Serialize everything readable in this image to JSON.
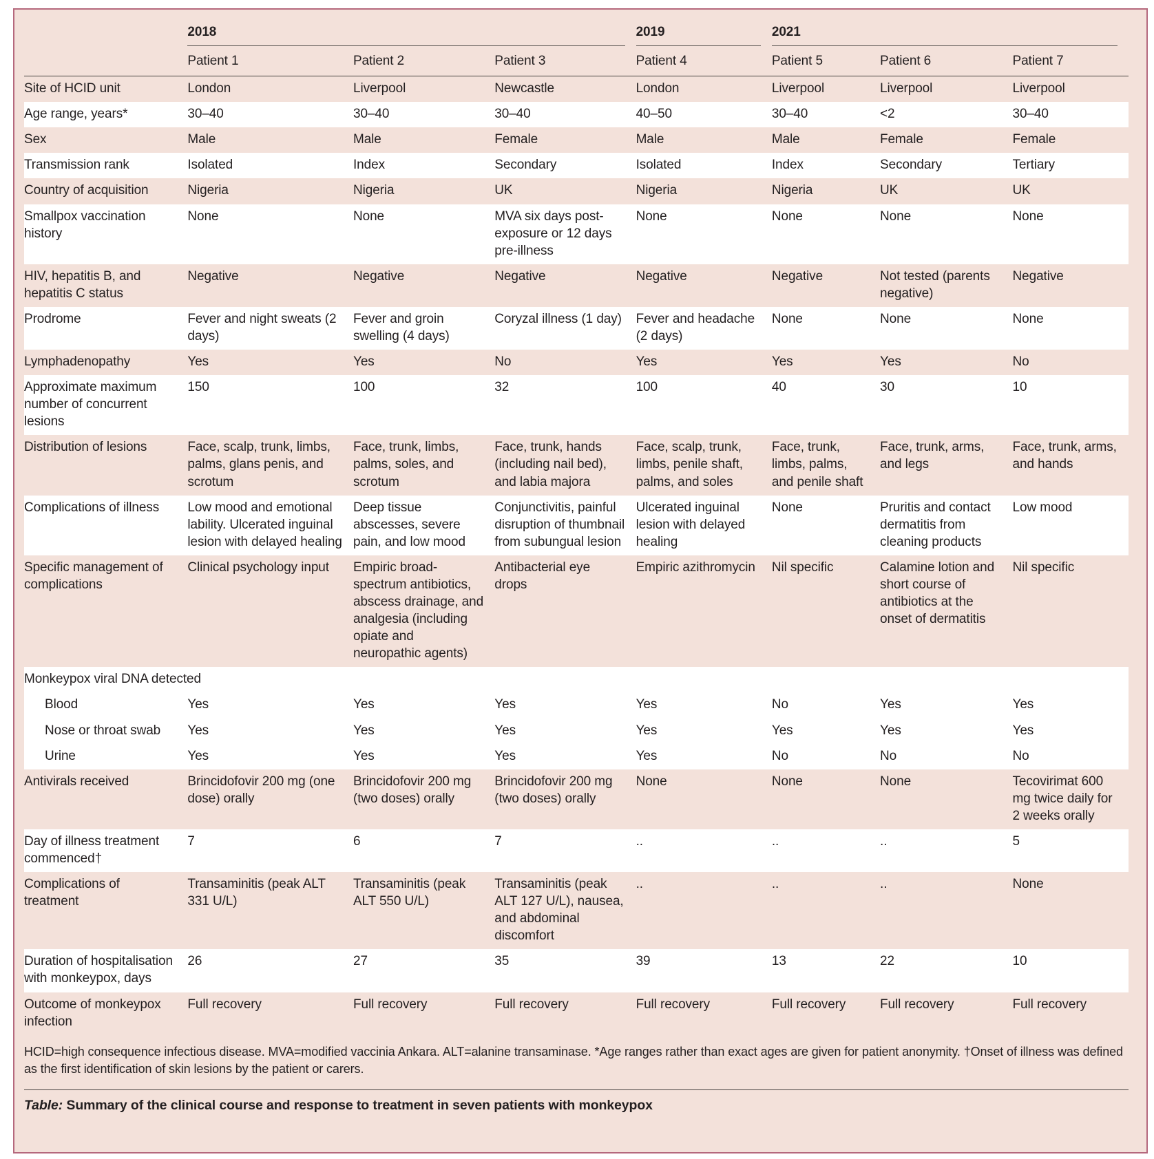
{
  "colors": {
    "figure_background": "#f3e1da",
    "stripe_white": "#ffffff",
    "figure_border": "#b5687d",
    "rule_dark": "#443f3d",
    "text": "#231f20"
  },
  "table": {
    "year_groups": [
      {
        "label": "2018"
      },
      {
        "label": "2019"
      },
      {
        "label": "2021"
      }
    ],
    "patients": [
      "Patient 1",
      "Patient 2",
      "Patient 3",
      "Patient 4",
      "Patient 5",
      "Patient 6",
      "Patient 7"
    ],
    "rows": [
      {
        "label": "Site of HCID unit",
        "shade": "pink",
        "values": [
          "London",
          "Liverpool",
          "Newcastle",
          "London",
          "Liverpool",
          "Liverpool",
          "Liverpool"
        ]
      },
      {
        "label": "Age range, years*",
        "shade": "white",
        "values": [
          "30–40",
          "30–40",
          "30–40",
          "40–50",
          "30–40",
          "<2",
          "30–40"
        ]
      },
      {
        "label": "Sex",
        "shade": "pink",
        "values": [
          "Male",
          "Male",
          "Female",
          "Male",
          "Male",
          "Female",
          "Female"
        ]
      },
      {
        "label": "Transmission rank",
        "shade": "white",
        "values": [
          "Isolated",
          "Index",
          "Secondary",
          "Isolated",
          "Index",
          "Secondary",
          "Tertiary"
        ]
      },
      {
        "label": "Country of acquisition",
        "shade": "pink",
        "values": [
          "Nigeria",
          "Nigeria",
          "UK",
          "Nigeria",
          "Nigeria",
          "UK",
          "UK"
        ]
      },
      {
        "label": "Smallpox vaccination history",
        "shade": "white",
        "values": [
          "None",
          "None",
          "MVA six days post-exposure or 12 days pre-illness",
          "None",
          "None",
          "None",
          "None"
        ]
      },
      {
        "label": "HIV, hepatitis B, and hepatitis C status",
        "shade": "pink",
        "values": [
          "Negative",
          "Negative",
          "Negative",
          "Negative",
          "Negative",
          "Not tested (parents negative)",
          "Negative"
        ]
      },
      {
        "label": "Prodrome",
        "shade": "white",
        "values": [
          "Fever and night sweats (2 days)",
          "Fever and groin swelling (4 days)",
          "Coryzal illness (1 day)",
          "Fever and headache (2 days)",
          "None",
          "None",
          "None"
        ]
      },
      {
        "label": "Lymphadenopathy",
        "shade": "pink",
        "values": [
          "Yes",
          "Yes",
          "No",
          "Yes",
          "Yes",
          "Yes",
          "No"
        ]
      },
      {
        "label": "Approximate maximum number of concurrent lesions",
        "shade": "white",
        "values": [
          "150",
          "100",
          "32",
          "100",
          "40",
          "30",
          "10"
        ]
      },
      {
        "label": "Distribution of lesions",
        "shade": "pink",
        "values": [
          "Face, scalp, trunk, limbs, palms, glans penis, and scrotum",
          "Face, trunk, limbs, palms, soles, and scrotum",
          "Face, trunk, hands (including nail bed), and labia majora",
          "Face, scalp, trunk, limbs, penile shaft, palms, and soles",
          "Face, trunk, limbs, palms, and penile shaft",
          "Face, trunk, arms, and legs",
          "Face, trunk, arms, and hands"
        ]
      },
      {
        "label": "Complications of illness",
        "shade": "white",
        "values": [
          "Low mood and emotional lability. Ulcerated inguinal lesion with delayed healing",
          "Deep tissue abscesses, severe pain, and low mood",
          "Conjunctivitis, painful disruption of thumbnail from subungual lesion",
          "Ulcerated inguinal lesion with delayed healing",
          "None",
          "Pruritis and contact dermatitis from cleaning products",
          "Low mood"
        ]
      },
      {
        "label": "Specific management of complications",
        "shade": "pink",
        "values": [
          "Clinical psychology input",
          "Empiric broad-spectrum antibiotics, abscess drainage, and analgesia (including opiate and neuropathic agents)",
          "Antibacterial eye drops",
          "Empiric azithromycin",
          "Nil specific",
          "Calamine lotion and short course of antibiotics at the onset of dermatitis",
          "Nil specific"
        ]
      },
      {
        "label": "Monkeypox viral DNA detected",
        "shade": "white",
        "section": true,
        "values": []
      },
      {
        "label": "Blood",
        "shade": "white",
        "indent": true,
        "values": [
          "Yes",
          "Yes",
          "Yes",
          "Yes",
          "No",
          "Yes",
          "Yes"
        ]
      },
      {
        "label": "Nose or throat swab",
        "shade": "white",
        "indent": true,
        "values": [
          "Yes",
          "Yes",
          "Yes",
          "Yes",
          "Yes",
          "Yes",
          "Yes"
        ]
      },
      {
        "label": "Urine",
        "shade": "white",
        "indent": true,
        "values": [
          "Yes",
          "Yes",
          "Yes",
          "Yes",
          "No",
          "No",
          "No"
        ]
      },
      {
        "label": "Antivirals received",
        "shade": "pink",
        "values": [
          "Brincidofovir 200 mg (one dose) orally",
          "Brincidofovir 200 mg (two doses) orally",
          "Brincidofovir 200 mg (two doses) orally",
          "None",
          "None",
          "None",
          "Tecovirimat 600 mg twice daily for 2 weeks orally"
        ]
      },
      {
        "label": "Day of illness treatment commenced†",
        "shade": "white",
        "values": [
          "7",
          "6",
          "7",
          "..",
          "..",
          "..",
          "5"
        ]
      },
      {
        "label": "Complications of treatment",
        "shade": "pink",
        "values": [
          "Transaminitis (peak ALT 331 U/L)",
          "Transaminitis (peak ALT 550 U/L)",
          "Transaminitis (peak ALT 127 U/L), nausea, and abdominal discomfort",
          "..",
          "..",
          "..",
          "None"
        ]
      },
      {
        "label": "Duration of hospitalisation with monkeypox, days",
        "shade": "white",
        "values": [
          "26",
          "27",
          "35",
          "39",
          "13",
          "22",
          "10"
        ]
      },
      {
        "label": "Outcome of monkeypox infection",
        "shade": "pink",
        "values": [
          "Full recovery",
          "Full recovery",
          "Full recovery",
          "Full recovery",
          "Full recovery",
          "Full recovery",
          "Full recovery"
        ]
      }
    ],
    "footnote": "HCID=high consequence infectious disease. MVA=modified vaccinia Ankara. ALT=alanine transaminase. *Age ranges rather than exact ages are given for patient anonymity. †Onset of illness was defined as the first identification of skin lesions by the patient or carers.",
    "caption_prefix": "Table:",
    "caption_text": " Summary of the clinical course and response to treatment in seven patients with monkeypox"
  }
}
